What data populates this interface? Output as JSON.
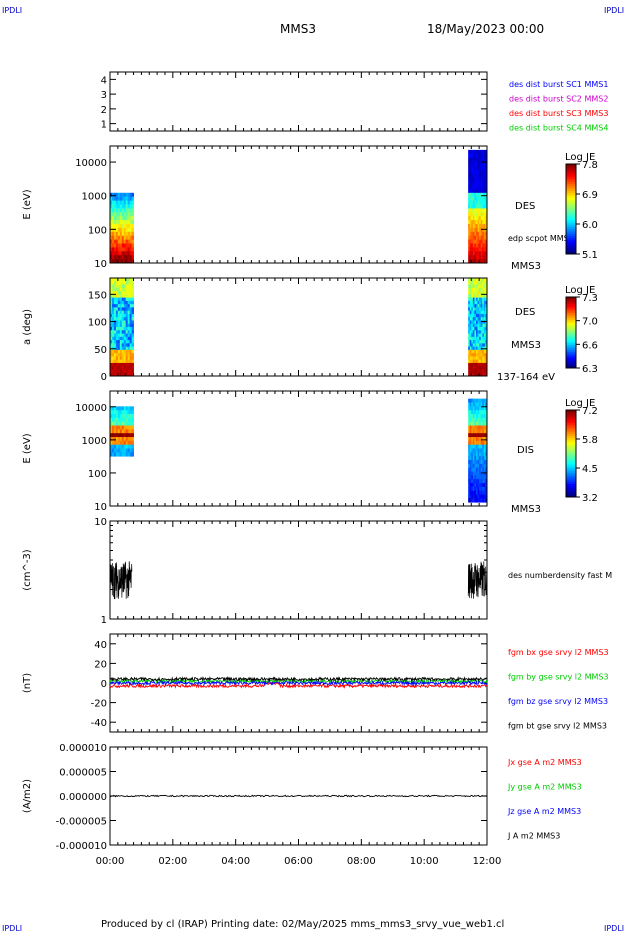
{
  "corners": {
    "top_left": "IPDLI",
    "top_right": "IPDLI",
    "bottom_left": "IPDLI",
    "bottom_right": "IPDLI"
  },
  "header": {
    "spacecraft": "MMS3",
    "datetime": "18/May/2023 00:00"
  },
  "footer": {
    "text": "Produced by cl (IRAP)   Printing date: 02/May/2025   mms_mms3_srvy_vue_web1.cl"
  },
  "time_axis": {
    "ticks": [
      "00:00",
      "02:00",
      "04:00",
      "06:00",
      "08:00",
      "10:00",
      "12:00"
    ]
  },
  "colors": {
    "blue": "#0000ff",
    "magenta": "#cc00cc",
    "red": "#ff0000",
    "green": "#00cc00",
    "black": "#000000"
  },
  "chart_data": [
    {
      "type": "line",
      "panel": "burst",
      "yticks": [
        "4",
        "3",
        "2",
        "1"
      ],
      "ylim": [
        0.5,
        4.5
      ],
      "legend": [
        {
          "text": "des dist burst SC1 MMS1",
          "color": "#0000ff"
        },
        {
          "text": "des dist burst SC2 MMS2",
          "color": "#cc00cc"
        },
        {
          "text": "des dist burst SC3 MMS3",
          "color": "#ff0000"
        },
        {
          "text": "des dist burst SC4 MMS4",
          "color": "#00cc00"
        }
      ]
    },
    {
      "type": "heatmap",
      "panel": "des_energy",
      "ylabel": "E (eV)",
      "yticks": [
        "10000",
        "1000",
        "100",
        "10"
      ],
      "ylim": [
        10,
        30000
      ],
      "yscale": "log",
      "labels": [
        "DES",
        "edp scpot MMS3",
        "MMS3"
      ],
      "colorbar": {
        "title": "Log JE",
        "ticks": [
          "7.8",
          "6.9",
          "6.0",
          "5.1"
        ]
      },
      "coverage_hours": [
        [
          0.0,
          0.75
        ],
        [
          11.4,
          12.0
        ]
      ]
    },
    {
      "type": "heatmap",
      "panel": "des_pitch",
      "ylabel": "a (deg)",
      "yticks": [
        "150",
        "100",
        "50",
        "0"
      ],
      "ylim": [
        0,
        180
      ],
      "labels": [
        "DES",
        "MMS3",
        "137-164 eV"
      ],
      "colorbar": {
        "title": "Log JE",
        "ticks": [
          "7.3",
          "7.0",
          "6.6",
          "6.3"
        ]
      },
      "coverage_hours": [
        [
          0.0,
          0.75
        ],
        [
          11.4,
          12.0
        ]
      ]
    },
    {
      "type": "heatmap",
      "panel": "dis_energy",
      "ylabel": "E (eV)",
      "yticks": [
        "10000",
        "1000",
        "100",
        "10"
      ],
      "ylim": [
        10,
        30000
      ],
      "yscale": "log",
      "labels": [
        "DIS",
        "MMS3"
      ],
      "colorbar": {
        "title": "Log JE",
        "ticks": [
          "7.2",
          "5.8",
          "4.5",
          "3.2"
        ]
      },
      "coverage_hours": [
        [
          0.0,
          0.75
        ],
        [
          11.4,
          12.0
        ]
      ]
    },
    {
      "type": "line",
      "panel": "density",
      "ylabel": "(cm^-3)",
      "yticks": [
        "10",
        "1"
      ],
      "ylim": [
        1,
        10
      ],
      "yscale": "log",
      "legend": [
        {
          "text": "des numberdensity fast M",
          "color": "#000000"
        }
      ],
      "segments_hours": [
        [
          0.0,
          0.7
        ],
        [
          11.4,
          12.0
        ]
      ],
      "typical_value": 2.5
    },
    {
      "type": "line",
      "panel": "bfield",
      "ylabel": "(nT)",
      "yticks": [
        "40",
        "20",
        "0",
        "-20",
        "-40"
      ],
      "ylim": [
        -50,
        50
      ],
      "legend": [
        {
          "text": "fgm bx gse srvy l2 MMS3",
          "color": "#ff0000"
        },
        {
          "text": "fgm by gse srvy l2 MMS3",
          "color": "#00cc00"
        },
        {
          "text": "fgm bz gse srvy l2 MMS3",
          "color": "#0000ff"
        },
        {
          "text": "fgm bt gse srvy l2 MMS3",
          "color": "#000000"
        }
      ],
      "series": [
        {
          "name": "fgm bx gse srvy l2 MMS3",
          "color": "#ff0000",
          "level": -3
        },
        {
          "name": "fgm by gse srvy l2 MMS3",
          "color": "#00cc00",
          "level": 2
        },
        {
          "name": "fgm bz gse srvy l2 MMS3",
          "color": "#0000ff",
          "level": 0
        },
        {
          "name": "fgm bt gse srvy l2 MMS3",
          "color": "#000000",
          "level": 4
        }
      ]
    },
    {
      "type": "line",
      "panel": "current",
      "ylabel": "(A/m2)",
      "yticks": [
        "0.000010",
        "0.000005",
        "0.000000",
        "-0.000005",
        "-0.000010"
      ],
      "ylim": [
        -1e-05,
        1e-05
      ],
      "legend": [
        {
          "text": "Jx gse A m2 MMS3",
          "color": "#ff0000"
        },
        {
          "text": "Jy gse A m2 MMS3",
          "color": "#00cc00"
        },
        {
          "text": "Jz gse A m2 MMS3",
          "color": "#0000ff"
        },
        {
          "text": "J A m2 MMS3",
          "color": "#000000"
        }
      ]
    }
  ]
}
